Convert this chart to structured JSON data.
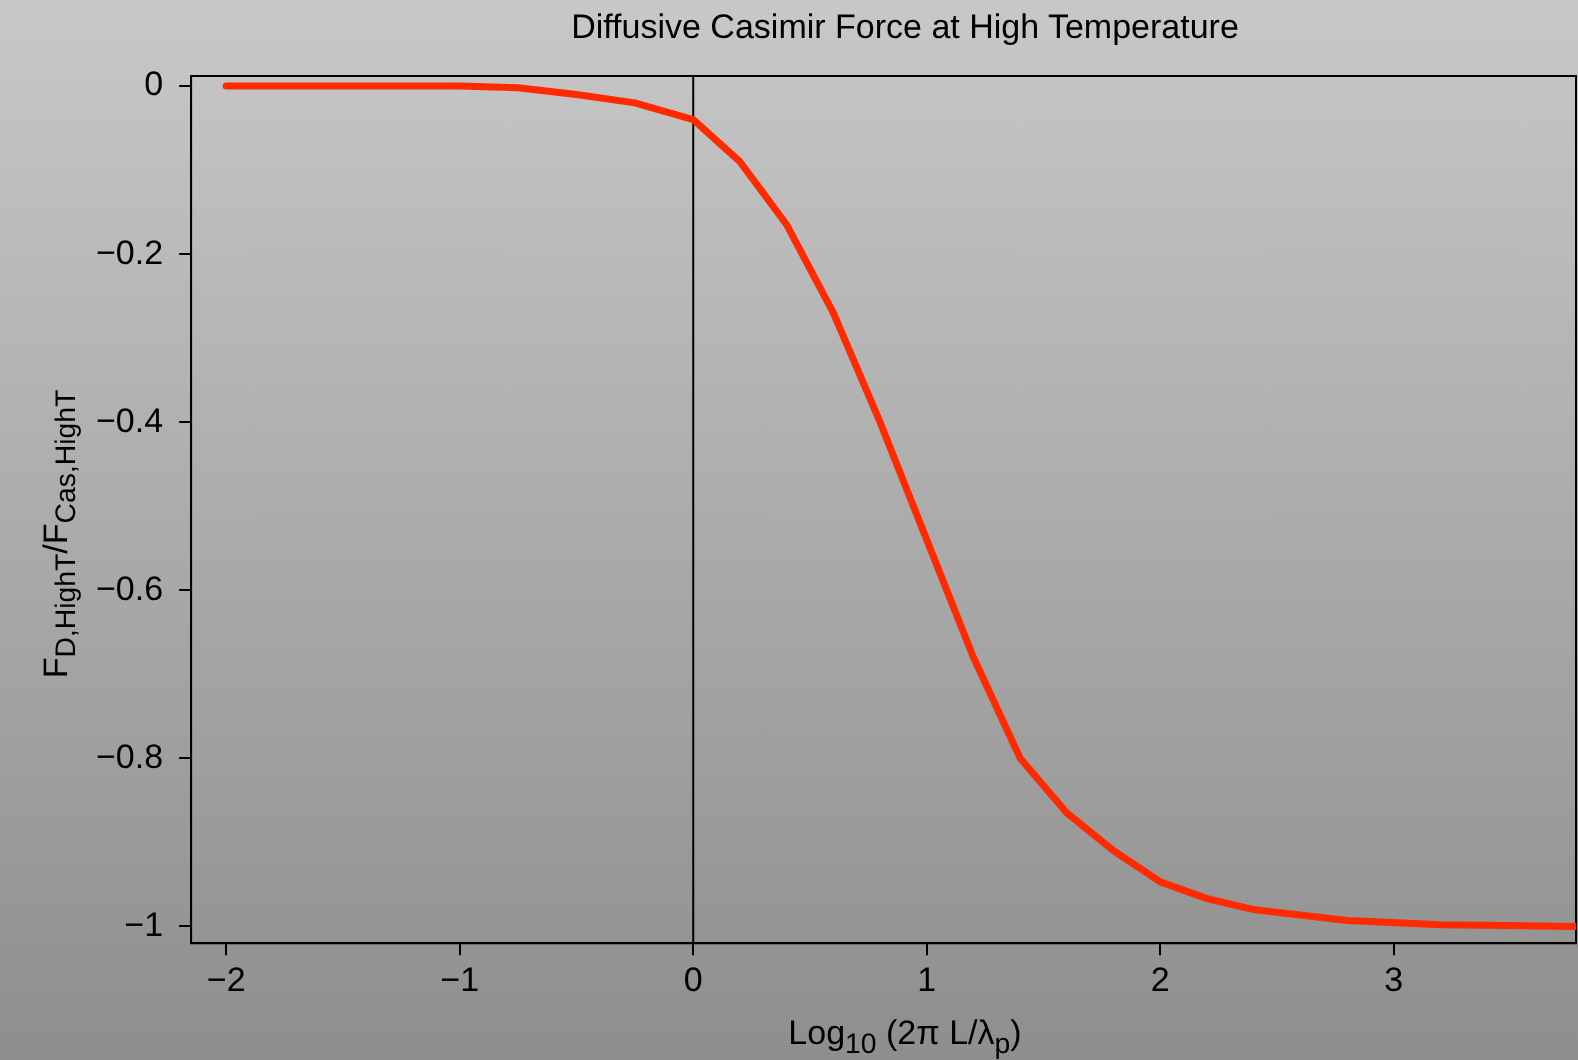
{
  "chart_data": {
    "type": "line",
    "title": "Diffusive Casimir Force at High Temperature",
    "xlabel": "Log$_{10}$ (2π L/λ$_{p}$)",
    "ylabel": "F$_{D,HighT}$/F$_{Cas,HighT}$",
    "x": [
      -2,
      -1.5,
      -1,
      -0.75,
      -0.5,
      -0.25,
      0,
      0.2,
      0.4,
      0.6,
      0.8,
      1.0,
      1.2,
      1.4,
      1.6,
      1.8,
      2.0,
      2.2,
      2.4,
      2.8,
      3.2,
      3.78
    ],
    "series": [
      {
        "color": "#ff2a00",
        "values": [
          0,
          0,
          0,
          -0.002,
          -0.01,
          -0.02,
          -0.04,
          -0.09,
          -0.165,
          -0.27,
          -0.4,
          -0.54,
          -0.68,
          -0.8,
          -0.865,
          -0.91,
          -0.947,
          -0.967,
          -0.98,
          -0.993,
          -0.998,
          -1
        ]
      }
    ],
    "xlim": [
      -2.15,
      3.78
    ],
    "ylim": [
      -1.02,
      0.012
    ],
    "xticks": [
      {
        "value": -2,
        "label": "−2"
      },
      {
        "value": -1,
        "label": "−1"
      },
      0,
      1,
      2,
      3
    ],
    "yticks": [
      {
        "value": -1,
        "label": "−1"
      },
      {
        "value": -0.8,
        "label": "−0.8"
      },
      {
        "value": -0.6,
        "label": "−0.6"
      },
      {
        "value": -0.4,
        "label": "−0.4"
      },
      {
        "value": -0.2,
        "label": "−0.2"
      },
      0
    ],
    "ref_lines": [
      {
        "axis": "x",
        "value": 0,
        "color": "#000000"
      }
    ],
    "grid": false,
    "legend": false,
    "marker": "none",
    "line_style": "solid"
  }
}
